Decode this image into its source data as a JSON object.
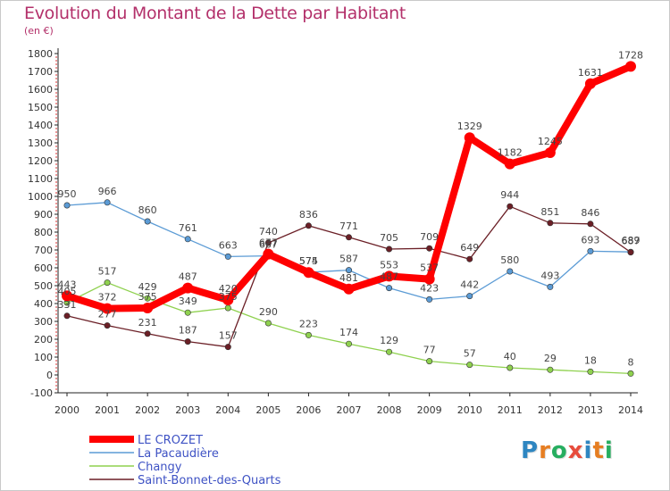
{
  "chart_data": {
    "type": "line",
    "title": "Evolution du Montant de la Dette par Habitant",
    "subtitle": "(en €)",
    "x": [
      "2000",
      "2001",
      "2002",
      "2003",
      "2004",
      "2005",
      "2006",
      "2007",
      "2008",
      "2009",
      "2010",
      "2011",
      "2012",
      "2013",
      "2014"
    ],
    "ylim": [
      -100,
      1800
    ],
    "yticks": [
      -100,
      0,
      100,
      200,
      300,
      400,
      500,
      600,
      700,
      800,
      900,
      1000,
      1100,
      1200,
      1300,
      1400,
      1500,
      1600,
      1700,
      1800
    ],
    "grid": false,
    "legend_position": "bottom-left",
    "series": [
      {
        "name": "LE CROZET",
        "color": "#ff0000",
        "values": [
          443,
          372,
          375,
          487,
          420,
          677,
          574,
          481,
          553,
          537,
          1329,
          1182,
          1245,
          1631,
          1728
        ]
      },
      {
        "name": "La Pacaudière",
        "color": "#5b9bd5",
        "values": [
          950,
          966,
          860,
          761,
          663,
          667,
          575,
          587,
          487,
          423,
          442,
          580,
          493,
          693,
          689
        ]
      },
      {
        "name": "Changy",
        "color": "#8fd14f",
        "values": [
          405,
          517,
          429,
          349,
          375,
          290,
          223,
          174,
          129,
          77,
          57,
          40,
          29,
          18,
          8
        ]
      },
      {
        "name": "Saint-Bonnet-des-Quarts",
        "color": "#6b1f26",
        "values": [
          331,
          277,
          231,
          187,
          157,
          740,
          836,
          771,
          705,
          709,
          649,
          944,
          851,
          846,
          687
        ]
      }
    ]
  },
  "logo": {
    "letters": [
      {
        "ch": "P",
        "color": "#2e86c1"
      },
      {
        "ch": "r",
        "color": "#e67e22"
      },
      {
        "ch": "o",
        "color": "#27ae60"
      },
      {
        "ch": "x",
        "color": "#e74c3c"
      },
      {
        "ch": "i",
        "color": "#2e86c1"
      },
      {
        "ch": "t",
        "color": "#e67e22"
      },
      {
        "ch": "i",
        "color": "#27ae60"
      }
    ]
  }
}
